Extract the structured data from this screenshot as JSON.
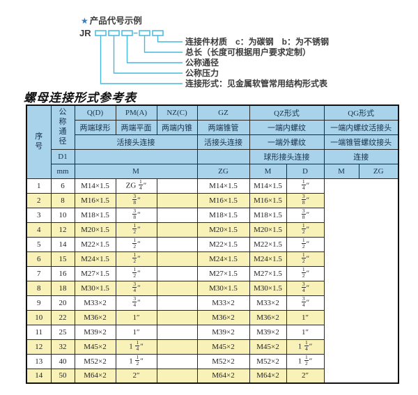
{
  "diagram": {
    "star": "★",
    "heading": "产品代号示例",
    "code_prefix": "JR",
    "labels": [
      "连接件材质　c：为碳钢　b：为不锈钢",
      "总长（长度可根据用户要求定制）",
      "公称通径",
      "公称压力",
      "连接形式：见金属软管常用结构形式表"
    ],
    "line_color": "#44b8dd"
  },
  "title": "螺母连接形式参考表",
  "table": {
    "header": {
      "seq": "序\n号",
      "dn": "公\n称\n通\n径",
      "d1": "D1",
      "mm": "mm",
      "q": "Q(D)",
      "pm": "PM(A)",
      "nz": "NZ(C)",
      "gz": "GZ",
      "qz": "QZ形式",
      "qg": "QG形式",
      "q_sub": "两端球形",
      "pm_sub": "两端平面",
      "nz_sub": "两端内锥",
      "gz_sub": "两端锥管",
      "qz_sub1": "一端内螺纹",
      "qg_sub1": "一端内螺纹活接头",
      "union_conn": "活接头连接",
      "gz_conn": "活接头连接",
      "qz_sub2": "一端外螺纹",
      "qg_sub2": "一端锥管螺纹接头",
      "qz_conn": "球形接头连接",
      "qg_conn": "连接",
      "m_span": "M",
      "zg_col": "ZG",
      "qz_m": "M",
      "qz_d": "D",
      "qg_m": "M",
      "qg_zg": "ZG"
    },
    "colors": {
      "header_bg": "#a9d3ea",
      "stripe_bg": "#f9f2b8",
      "border": "#262626"
    },
    "rows": [
      [
        "1",
        "6",
        "M14×1.5",
        "ZG 1/4″",
        "",
        "M14×1.5",
        "M14×1.5",
        "1/4″"
      ],
      [
        "2",
        "8",
        "M16×1.5",
        "3/8″",
        "",
        "M16×1.5",
        "M16×1.5",
        "3/8″"
      ],
      [
        "3",
        "10",
        "M18×1.5",
        "3/8″",
        "",
        "M18×1.5",
        "M18×1.5",
        "3/8″"
      ],
      [
        "4",
        "12",
        "M20×1.5",
        "1/2″",
        "",
        "M20×1.5",
        "M20×1.5",
        "1/2″"
      ],
      [
        "5",
        "14",
        "M22×1.5",
        "1/2″",
        "",
        "M22×1.5",
        "M22×1.5",
        "1/2″"
      ],
      [
        "6",
        "15",
        "M24×1.5",
        "1/2″",
        "",
        "M24×1.5",
        "M24×1.5",
        "1/2″"
      ],
      [
        "7",
        "16",
        "M27×1.5",
        "1/2″",
        "",
        "M27×1.5",
        "M27×1.5",
        "1/2″"
      ],
      [
        "8",
        "18",
        "M30×1.5",
        "3/4″",
        "",
        "M30×1.5",
        "M30×1.5",
        "3/4″"
      ],
      [
        "9",
        "20",
        "M33×2",
        "3/4″",
        "",
        "M33×2",
        "M33×2",
        "3/4″"
      ],
      [
        "10",
        "22",
        "M36×2",
        "1″",
        "",
        "M36×2",
        "M36×2",
        "1″"
      ],
      [
        "11",
        "25",
        "M39×2",
        "1″",
        "",
        "M39×2",
        "M39×2",
        "1″"
      ],
      [
        "12",
        "32",
        "M45×2",
        "1 1/4″",
        "",
        "M45×2",
        "M45×2",
        "1 1/4″"
      ],
      [
        "13",
        "40",
        "M52×2",
        "1 1/2″",
        "",
        "M52×2",
        "M52×2",
        "1 1/2″"
      ],
      [
        "14",
        "50",
        "M64×2",
        "2″",
        "",
        "M64×2",
        "M64×2",
        "2″"
      ]
    ]
  }
}
